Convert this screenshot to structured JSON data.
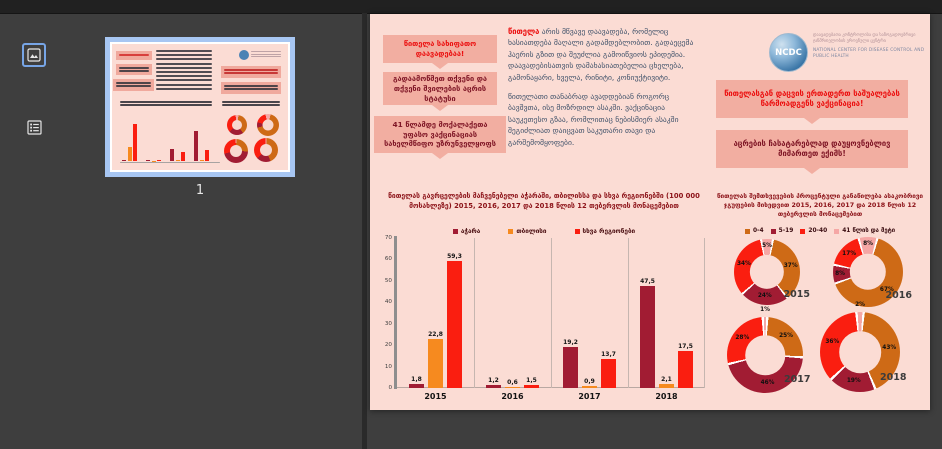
{
  "viewer": {
    "page_label": "1",
    "sidebar_tools": [
      {
        "name": "thumbnails-view",
        "selected": true
      },
      {
        "name": "outline-view",
        "selected": false
      }
    ],
    "selection_blue": "#A7C6F2"
  },
  "poster": {
    "background": "#FBDCD4",
    "callout_background": "#F2AEA1",
    "callouts_left": [
      {
        "text": "წითელა სახიფათო დაავადებაა!",
        "color": "#EB0F0F"
      },
      {
        "text": "გადაამოწმეთ თქვენი და თქვენი შვილების აცრის სტატუსი",
        "color": "#7E1525"
      },
      {
        "text": "41 წლამდე მოქალაქეთა უფასო ვაქცინაციას სახელმწიფო უზრუნველყოფს",
        "color": "#7E1525"
      }
    ],
    "intro": {
      "p1_lead": "წითელა",
      "p1_rest": " არის მწვავე დაავადება, რომელიც ხასიათდება მაღალი გადამდებლობით. გადაეცემა ჰაერის გზით და შეუძლია გამოიწვიოს ეპიდემია. დაავადებისათვის დამახასიათებელია ცხელება, გამონაყარი, ხველა, რინიტი, კონიუქტივიტი.",
      "p2": "წითელათი თანაბრად ავადდებიან როგორც ბავშვთა, ისე მოზრდილ ასაკში. ვაქცინაცია საუკეთესო გზაა, რომლითაც ნებისმიერ ასაკში შეგიძლიათ დაიცვათ საკუთარი თავი და გარშემომყოფები."
    },
    "logo": {
      "abbr": "NCDC",
      "georgian": "დაავადებათა კონტროლისა და საზოგადოებრივი ჯანმრთელობის ეროვნული ცენტრი",
      "english": "NATIONAL CENTER FOR DISEASE CONTROL AND PUBLIC HEALTH"
    },
    "callouts_right": [
      {
        "text": "წითელასგან დაცვის ერთადერთ საშუალებას წარმოადგენს ვაქცინაცია!",
        "color": "#EB0F0F"
      },
      {
        "text": "აცრების ჩასატარებლად დაუყოვნებლივ მიმართეთ ექიმს!",
        "color": "#7E1525"
      }
    ]
  },
  "chart_data": [
    {
      "type": "bar",
      "title": "წითელას გავრცელების მაჩვენებელი აჭარაში, თბილისსა და სხვა რეგიონებში (100 000 მოსახლეზე) 2015, 2016, 2017 და 2018 წლის 12 თებერვლის მონაცემებით",
      "categories": [
        "2015",
        "2016",
        "2017",
        "2018"
      ],
      "series": [
        {
          "name": "აჭარა",
          "color": "#A11C33",
          "values": [
            1.8,
            1.2,
            19.2,
            47.5
          ],
          "labels": [
            "1,8",
            "1,2",
            "19,2",
            "47,5"
          ]
        },
        {
          "name": "თბილისი",
          "color": "#F68A1F",
          "values": [
            22.8,
            0.6,
            0.9,
            2.1
          ],
          "labels": [
            "22,8",
            "0,6",
            "0,9",
            "2,1"
          ]
        },
        {
          "name": "სხვა რეგიონები",
          "color": "#FA1E10",
          "values": [
            59.3,
            1.5,
            13.7,
            17.5
          ],
          "labels": [
            "59,3",
            "1,5",
            "13,7",
            "17,5"
          ]
        }
      ],
      "ylim": [
        0,
        70
      ],
      "yticks": [
        0,
        10,
        20,
        30,
        40,
        50,
        60,
        70
      ],
      "legend_position": "top",
      "grid": false
    },
    {
      "type": "pie",
      "subtype": "donut",
      "title": "წითელას შემთხვევების პროცენტული განაწილება ასაკობრივი ჯგუფების მიხედვით 2015, 2016, 2017 და 2018 წლის 12 თებერვლის მონაცემებით",
      "legend": [
        {
          "label": "0-4",
          "color": "#CE6A16"
        },
        {
          "label": "5-19",
          "color": "#A11C33"
        },
        {
          "label": "20-40",
          "color": "#FA1E10"
        },
        {
          "label": "41 წლის და მეტი",
          "color": "#F5A7A5"
        }
      ],
      "charts": [
        {
          "year": "2015",
          "values": [
            37,
            24,
            34,
            5
          ]
        },
        {
          "year": "2016",
          "values": [
            67,
            8,
            17,
            8
          ]
        },
        {
          "year": "2017",
          "values": [
            25,
            46,
            28,
            1
          ]
        },
        {
          "year": "2018",
          "values": [
            43,
            19,
            36,
            2
          ]
        }
      ],
      "values_align_with_legend": true,
      "clockwise_from_top_order": [
        3,
        0,
        1,
        2
      ],
      "legend_position": "top"
    }
  ]
}
